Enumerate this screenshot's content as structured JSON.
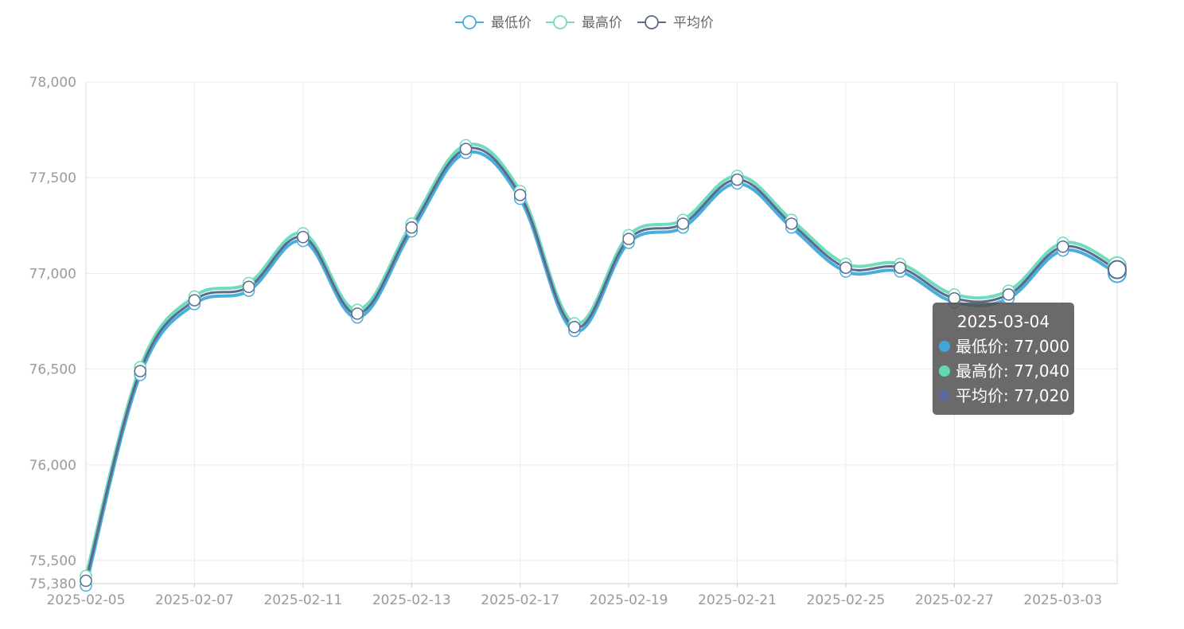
{
  "chart_data": {
    "type": "line",
    "x": [
      "2025-02-05",
      "2025-02-06",
      "2025-02-07",
      "2025-02-08",
      "2025-02-11",
      "2025-02-12",
      "2025-02-13",
      "2025-02-14",
      "2025-02-17",
      "2025-02-18",
      "2025-02-19",
      "2025-02-20",
      "2025-02-21",
      "2025-02-24",
      "2025-02-25",
      "2025-02-26",
      "2025-02-27",
      "2025-02-28",
      "2025-03-03",
      "2025-03-04"
    ],
    "x_tick_labels": [
      "2025-02-05",
      "2025-02-07",
      "2025-02-11",
      "2025-02-13",
      "2025-02-17",
      "2025-02-19",
      "2025-02-21",
      "2025-02-25",
      "2025-02-27",
      "2025-03-03"
    ],
    "y_tick_labels": [
      "78,000",
      "77,500",
      "77,000",
      "76,500",
      "76,000",
      "75,500",
      "75,380"
    ],
    "ylim": [
      75380,
      78000
    ],
    "smooth": true,
    "grid": true,
    "legend_position": "top-center",
    "series": [
      {
        "name": "最低价",
        "color": "#4aaedc",
        "values": [
          75370,
          76470,
          76840,
          76910,
          77170,
          76770,
          77220,
          77630,
          77390,
          76700,
          77160,
          77240,
          77470,
          77240,
          77010,
          77010,
          76850,
          76870,
          77120,
          77000
        ]
      },
      {
        "name": "最高价",
        "color": "#6fdcbf",
        "values": [
          75420,
          76510,
          76880,
          76950,
          77210,
          76810,
          77260,
          77670,
          77430,
          76740,
          77200,
          77280,
          77510,
          77280,
          77050,
          77050,
          76890,
          76910,
          77160,
          77040
        ]
      },
      {
        "name": "平均价",
        "color": "#5c6a8c",
        "values": [
          75395,
          76490,
          76860,
          76930,
          77190,
          76790,
          77240,
          77650,
          77410,
          76720,
          77180,
          77260,
          77490,
          77260,
          77030,
          77030,
          76870,
          76890,
          77140,
          77020
        ]
      }
    ],
    "tooltip": {
      "title": "2025-03-04",
      "rows": [
        {
          "label": "最低价: 77,000",
          "color": "#3fa7dc"
        },
        {
          "label": "最高价: 77,040",
          "color": "#63d8b4"
        },
        {
          "label": "平均价: 77,020",
          "color": "#5a6a9a"
        }
      ]
    }
  }
}
